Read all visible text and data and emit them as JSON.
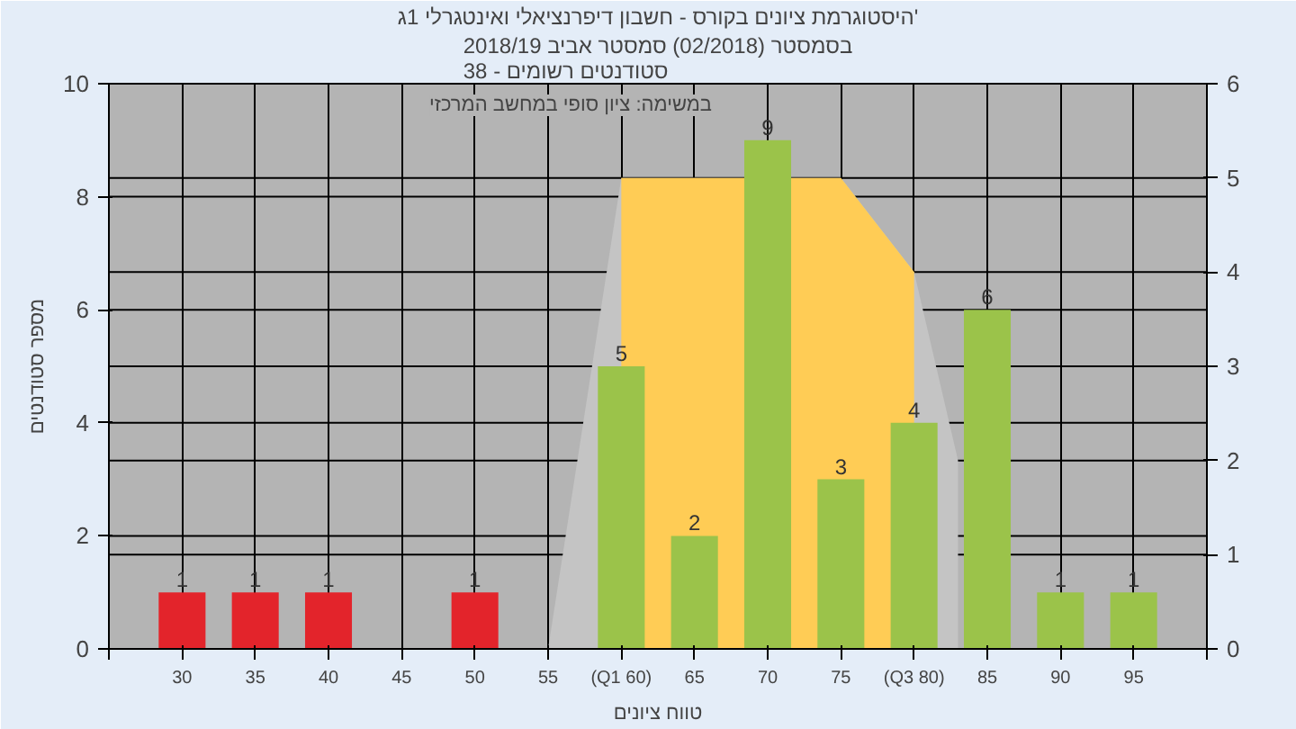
{
  "chart_data": {
    "type": "bar",
    "title": "היסטוגרמת ציונים בקורס - חשבון דיפרנציאלי ואינטגרלי 1ג'",
    "subtitle": "בסמסטר (02/2018) סמסטר אביב 2018/19\nסטודנטים רשומים - 38",
    "xlabel": "טווח ציונים",
    "ylabel": "מספר סטודנטים",
    "annotations": [
      "במשימה: ציון סופי במחשב המרכזי"
    ],
    "series": [
      {
        "type": "area",
        "axis": "y2",
        "color": "#c4c4c4",
        "x": [
          55,
          60,
          75,
          80,
          83
        ],
        "values": [
          0,
          5,
          5,
          4,
          2
        ]
      },
      {
        "type": "area",
        "axis": "y2",
        "color": "#ffcc55",
        "x": [
          60,
          75,
          80
        ],
        "values": [
          5,
          5,
          4
        ]
      },
      {
        "x": [
          30,
          35,
          40,
          50,
          60,
          65,
          70,
          75,
          80,
          85,
          90,
          95
        ],
        "values": [
          1,
          1,
          1,
          1,
          5,
          2,
          9,
          3,
          4,
          6,
          1,
          1
        ],
        "value_labels": [
          "1",
          "1",
          "1",
          "1",
          "5",
          "2",
          "9",
          "3",
          "4",
          "6",
          "1",
          "1"
        ],
        "colors": [
          "#e3242b",
          "#e3242b",
          "#e3242b",
          "#e3242b",
          "#9bc34a",
          "#9bc34a",
          "#9bc34a",
          "#9bc34a",
          "#9bc34a",
          "#9bc34a",
          "#9bc34a",
          "#9bc34a"
        ]
      }
    ],
    "xlim": [
      25,
      100
    ],
    "xticks": [
      {
        "value": 25,
        "label": null
      },
      30,
      35,
      40,
      45,
      50,
      55,
      {
        "value": 60,
        "label": "(Q1 60)"
      },
      65,
      70,
      75,
      {
        "value": 80,
        "label": "(Q3 80)"
      },
      85,
      90,
      95,
      {
        "value": 100,
        "label": null
      }
    ],
    "ylim": [
      0,
      10
    ],
    "yticks": [
      0,
      2,
      4,
      6,
      8,
      10
    ],
    "y2lim": [
      0,
      6
    ],
    "y2ticks": [
      0,
      1,
      2,
      3,
      4,
      5,
      6
    ],
    "grid": true
  }
}
